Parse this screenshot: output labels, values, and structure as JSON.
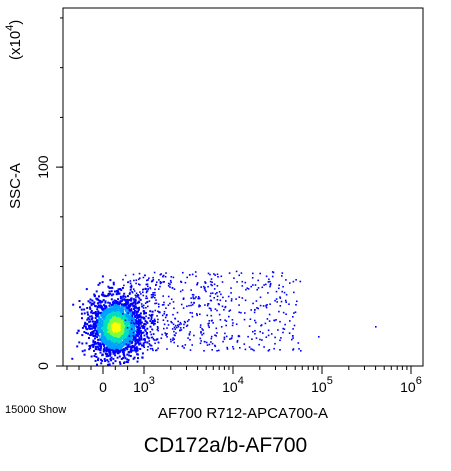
{
  "chart_data": {
    "type": "scatter",
    "subtype": "flow-cytometry-density-dot-plot",
    "title": "CD172a/b-AF700",
    "xlabel": "AF700 R712-APCA700-A",
    "ylabel": "SSC-A",
    "y_multiplier_label": "(x10",
    "y_multiplier_exp": "4",
    "y_multiplier_close": ")",
    "event_count_label": "15000 Show",
    "x_scale": "biexponential",
    "x_ticks": [
      {
        "value": 0,
        "base": "0",
        "exp": ""
      },
      {
        "value": 1000,
        "base": "10",
        "exp": "3"
      },
      {
        "value": 10000,
        "base": "10",
        "exp": "4"
      },
      {
        "value": 100000,
        "base": "10",
        "exp": "5"
      },
      {
        "value": 1000000,
        "base": "10",
        "exp": "6"
      }
    ],
    "y_ticks": [
      {
        "value": 0,
        "label": "0"
      },
      {
        "value": 100,
        "label": "100"
      }
    ],
    "ylim": [
      0,
      180
    ],
    "grid": false,
    "density_colors": [
      "#0000ff",
      "#00a0ff",
      "#00e0c0",
      "#80ff40",
      "#ffff00"
    ],
    "populations": [
      {
        "x_center": 300,
        "y_center": 20,
        "note": "dense core"
      },
      {
        "x_center_range": [
          1000,
          40000
        ],
        "y_range": [
          10,
          48
        ],
        "note": "sparse tail"
      }
    ]
  }
}
